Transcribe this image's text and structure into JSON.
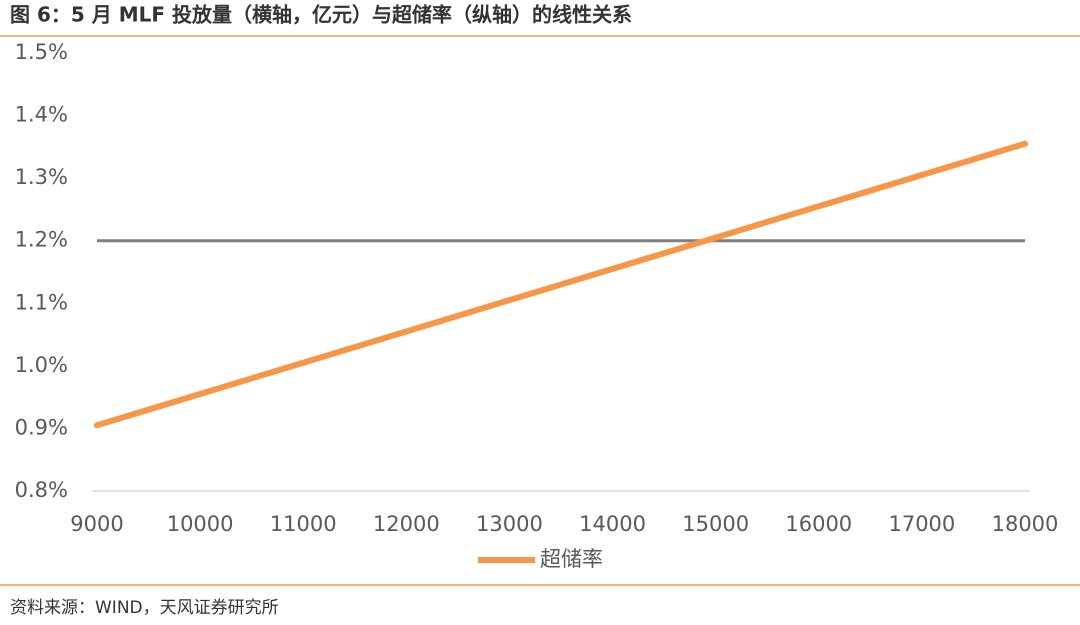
{
  "title": "图 6：5 月 MLF 投放量（横轴，亿元）与超储率（纵轴）的线性关系",
  "source": "资料来源：WIND，天风证券研究所",
  "chart_data": {
    "type": "line",
    "x": [
      9000,
      10000,
      11000,
      12000,
      13000,
      14000,
      15000,
      16000,
      17000,
      18000
    ],
    "series": [
      {
        "name": "超储率",
        "color": "#f79646",
        "values": [
          0.905,
          0.955,
          1.005,
          1.055,
          1.105,
          1.155,
          1.205,
          1.255,
          1.305,
          1.355
        ]
      }
    ],
    "reference_line": {
      "value": 1.2,
      "color": "#7f7f7f"
    },
    "xlim": [
      9000,
      18000
    ],
    "xticks": [
      9000,
      10000,
      11000,
      12000,
      13000,
      14000,
      15000,
      16000,
      17000,
      18000
    ],
    "ylim": [
      0.8,
      1.5
    ],
    "yticks": [
      {
        "value": 0.8,
        "label": "0.8%"
      },
      {
        "value": 0.9,
        "label": "0.9%"
      },
      {
        "value": 1.0,
        "label": "1.0%"
      },
      {
        "value": 1.1,
        "label": "1.1%"
      },
      {
        "value": 1.2,
        "label": "1.2%"
      },
      {
        "value": 1.3,
        "label": "1.3%"
      },
      {
        "value": 1.4,
        "label": "1.4%"
      },
      {
        "value": 1.5,
        "label": "1.5%"
      }
    ],
    "legend": "bottom"
  }
}
